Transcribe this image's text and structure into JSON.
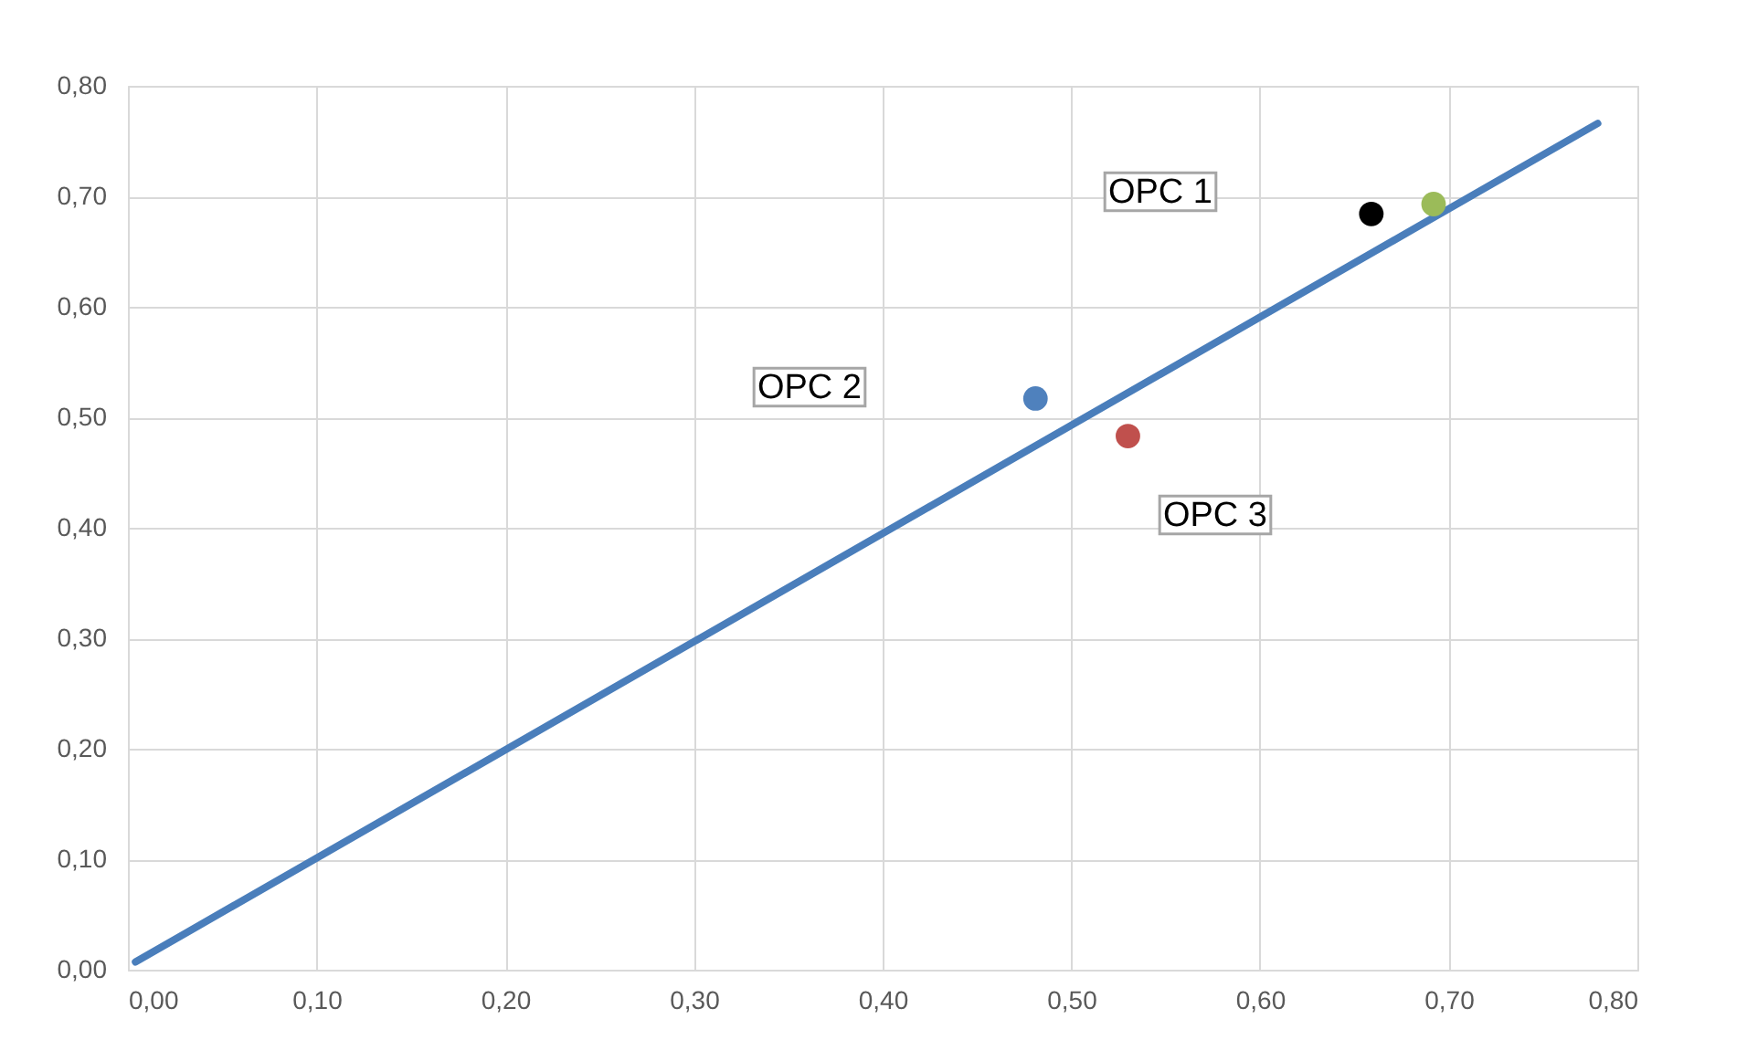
{
  "chart_data": {
    "type": "scatter",
    "series": [
      {
        "type": "line",
        "color": "#4a7ebb",
        "x": [
          0.004,
          0.779
        ],
        "values": [
          0.007,
          0.766
        ]
      },
      {
        "type": "scatter",
        "marker": "circle",
        "x": [
          0.481,
          0.53,
          0.692,
          0.659
        ],
        "values": [
          0.517,
          0.483,
          0.693,
          0.684
        ],
        "colors": [
          "#4f81bd",
          "#c0504d",
          "#9bbb59",
          "#000000"
        ]
      }
    ],
    "annotations": [
      "OPC 1",
      "OPC 2",
      "OPC 3"
    ],
    "xlim": [
      0,
      0.8
    ],
    "ylim": [
      0,
      0.8
    ],
    "xticks": [
      {
        "value": 0,
        "label": "0,00"
      },
      {
        "value": 0.1,
        "label": "0,10"
      },
      {
        "value": 0.2,
        "label": "0,20"
      },
      {
        "value": 0.3,
        "label": "0,30"
      },
      {
        "value": 0.4,
        "label": "0,40"
      },
      {
        "value": 0.5,
        "label": "0,50"
      },
      {
        "value": 0.6,
        "label": "0,60"
      },
      {
        "value": 0.7,
        "label": "0,70"
      },
      {
        "value": 0.8,
        "label": "0,80"
      }
    ],
    "yticks": [
      {
        "value": 0,
        "label": "0,00"
      },
      {
        "value": 0.1,
        "label": "0,10"
      },
      {
        "value": 0.2,
        "label": "0,20"
      },
      {
        "value": 0.3,
        "label": "0,30"
      },
      {
        "value": 0.4,
        "label": "0,40"
      },
      {
        "value": 0.5,
        "label": "0,50"
      },
      {
        "value": 0.6,
        "label": "0,60"
      },
      {
        "value": 0.7,
        "label": "0,70"
      },
      {
        "value": 0.8,
        "label": "0,80"
      }
    ],
    "grid": true
  }
}
